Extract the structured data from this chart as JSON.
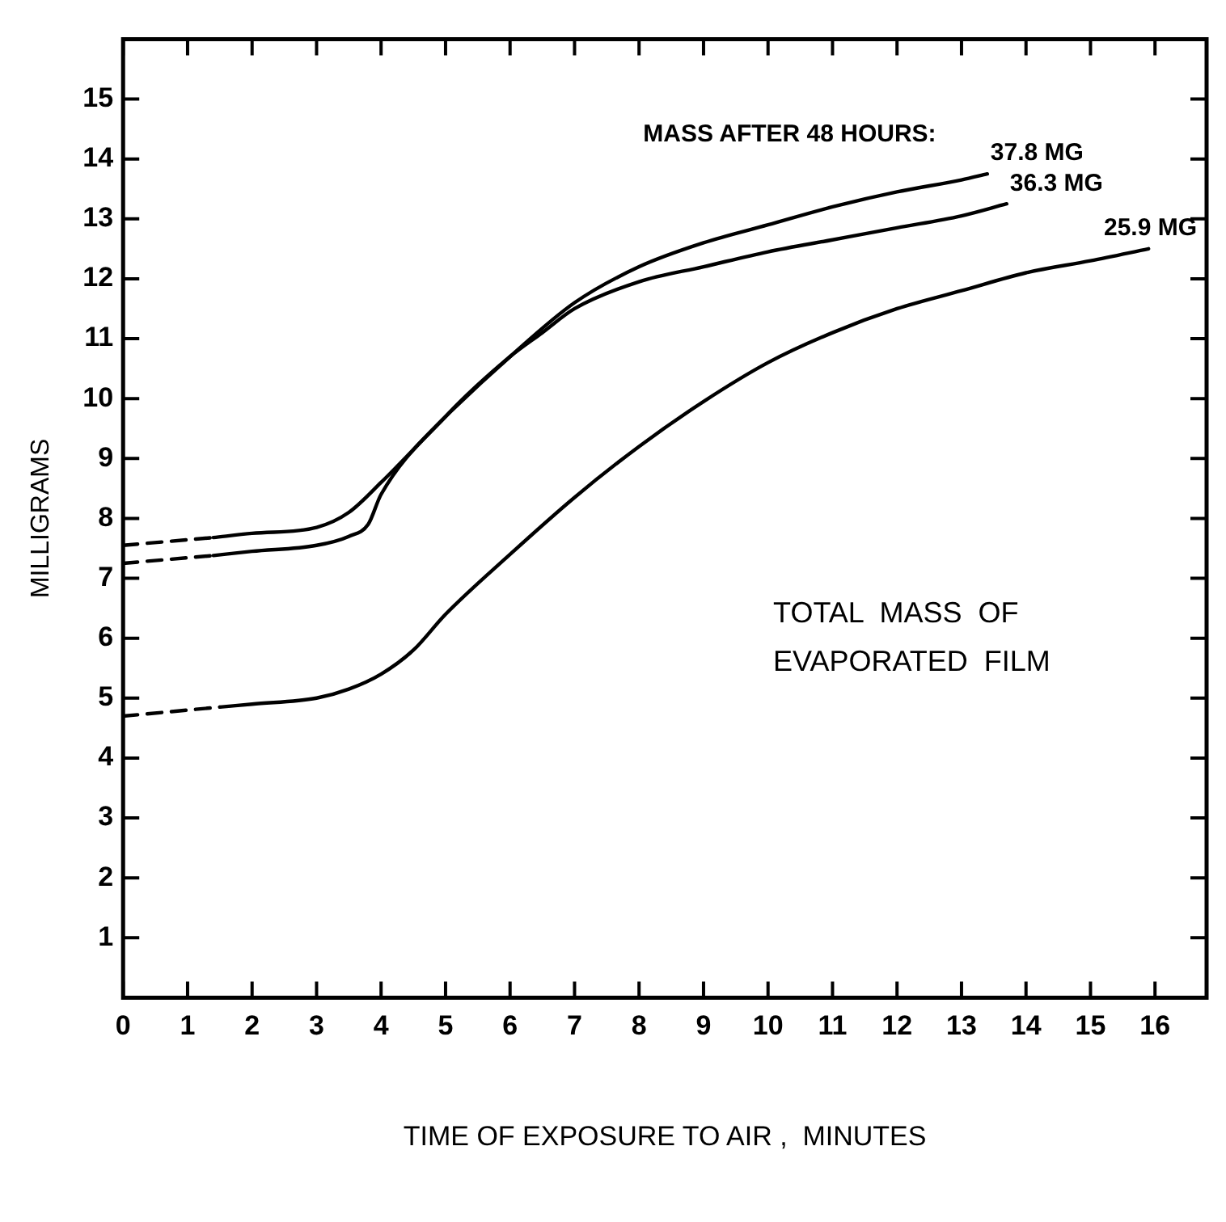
{
  "chart_data": {
    "type": "line",
    "xlabel": "TIME OF EXPOSURE TO AIR ,  MINUTES",
    "ylabel": "MILLIGRAMS",
    "xlim": [
      0,
      16.8
    ],
    "ylim": [
      0,
      16
    ],
    "xticks": [
      0,
      1,
      2,
      3,
      4,
      5,
      6,
      7,
      8,
      9,
      10,
      11,
      12,
      13,
      14,
      15,
      16
    ],
    "yticks": [
      1,
      2,
      3,
      4,
      5,
      6,
      7,
      8,
      9,
      10,
      11,
      12,
      13,
      14,
      15
    ],
    "grid": false,
    "legend": false,
    "marker": "none",
    "series": [
      {
        "color": "#000000",
        "line_style": "dashed",
        "x": [
          0,
          1.4
        ],
        "values": [
          7.55,
          7.68
        ]
      },
      {
        "color": "#000000",
        "line_style": "solid",
        "x": [
          1.4,
          2,
          3,
          3.5,
          4,
          5,
          6,
          7,
          8,
          9,
          10,
          11,
          12,
          13,
          13.4
        ],
        "values": [
          7.68,
          7.75,
          7.85,
          8.1,
          8.6,
          9.7,
          10.7,
          11.6,
          12.2,
          12.6,
          12.9,
          13.2,
          13.45,
          13.65,
          13.75
        ]
      },
      {
        "color": "#000000",
        "line_style": "dashed",
        "x": [
          0,
          1.4
        ],
        "values": [
          7.25,
          7.38
        ]
      },
      {
        "color": "#000000",
        "line_style": "solid",
        "x": [
          1.4,
          2,
          3,
          3.5,
          3.8,
          4,
          5,
          6,
          6.5,
          7,
          8,
          9,
          10,
          11,
          12,
          13,
          13.7
        ],
        "values": [
          7.38,
          7.45,
          7.55,
          7.7,
          7.9,
          8.4,
          9.7,
          10.7,
          11.1,
          11.5,
          11.95,
          12.2,
          12.45,
          12.65,
          12.85,
          13.05,
          13.25
        ]
      },
      {
        "color": "#000000",
        "line_style": "dashed",
        "x": [
          0,
          1.5
        ],
        "values": [
          4.7,
          4.85
        ]
      },
      {
        "color": "#000000",
        "line_style": "solid",
        "x": [
          1.5,
          2,
          3,
          3.5,
          4,
          4.5,
          5,
          6,
          7,
          8,
          9,
          10,
          11,
          12,
          13,
          14,
          15,
          15.9
        ],
        "values": [
          4.85,
          4.9,
          5.0,
          5.15,
          5.4,
          5.8,
          6.4,
          7.4,
          8.35,
          9.2,
          9.95,
          10.6,
          11.1,
          11.5,
          11.8,
          12.1,
          12.3,
          12.5
        ]
      }
    ],
    "annotations": [
      "MASS AFTER 48 HOURS:",
      {
        "text": "37.8 MG",
        "x": 13.4,
        "y": 13.75
      },
      {
        "text": "36.3 MG",
        "x": 13.7,
        "y": 13.25
      },
      {
        "text": "25.9 MG",
        "x": 15.9,
        "y": 12.5
      },
      "TOTAL  MASS  OF\nEVAPORATED  FILM"
    ]
  }
}
